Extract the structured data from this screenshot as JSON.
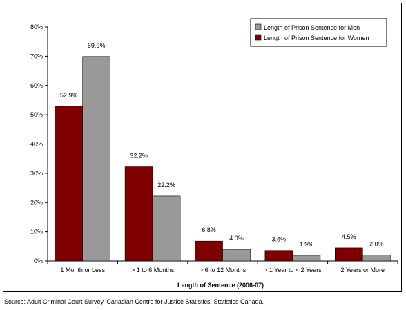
{
  "chart_data": {
    "type": "bar",
    "categories": [
      "1 Month or Less",
      "> 1 to 6 Months",
      "> 6 to 12 Months",
      "> 1 Year to < 2 Years",
      "2 Years or More"
    ],
    "series": [
      {
        "name": "Length of Prison Sentence for Women",
        "values": [
          52.9,
          32.2,
          6.8,
          3.6,
          4.5
        ],
        "labels": [
          "52.9%",
          "32.2%",
          "6.8%",
          "3.6%",
          "4.5%"
        ],
        "color": "#800000"
      },
      {
        "name": "Length of Prison Sentence for Men",
        "values": [
          69.9,
          22.2,
          4.0,
          1.9,
          2.0
        ],
        "labels": [
          "69.9%",
          "22.2%",
          "4.0%",
          "1.9%",
          "2.0%"
        ],
        "color": "#999999"
      }
    ],
    "legend_order": [
      1,
      0
    ],
    "legend_position": "top-right",
    "xlabel": "Length of Sentence (2006-07)",
    "ylabel": "",
    "ylim": [
      0,
      80
    ],
    "yticks": [
      0,
      10,
      20,
      30,
      40,
      50,
      60,
      70,
      80
    ],
    "ytick_labels": [
      "0%",
      "10%",
      "20%",
      "30%",
      "40%",
      "50%",
      "60%",
      "70%",
      "80%"
    ],
    "grid": false
  },
  "source_note": "Source:  Adult Criminal Court Survey, Canadian Centre for Justice Statistics, Statistics Canada."
}
